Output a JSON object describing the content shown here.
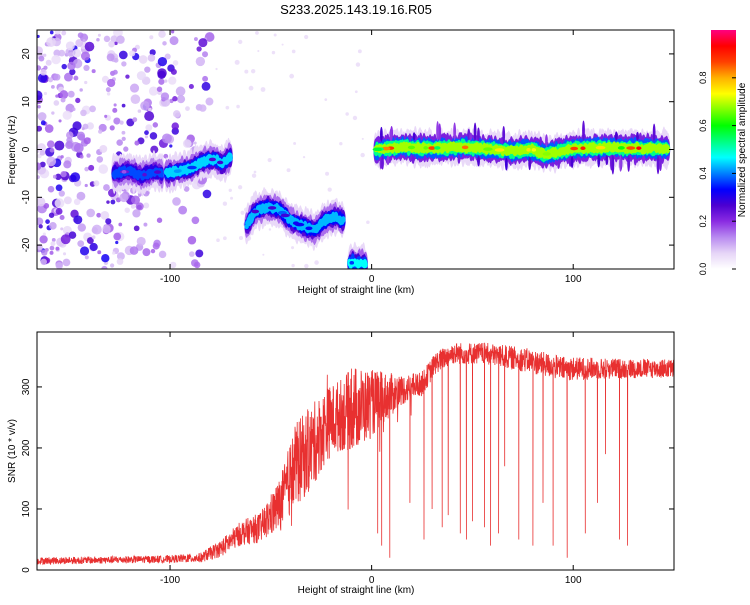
{
  "title": "S233.2025.143.19.16.R05",
  "colors": {
    "snr_line": "#e83030",
    "frame": "#000000",
    "noise_purple": "#8a2be2",
    "colormap": [
      "#ffffff",
      "#e6d5f7",
      "#b889f0",
      "#8a2be2",
      "#4b00d1",
      "#0000ff",
      "#0080ff",
      "#00ffff",
      "#00ff80",
      "#00ff00",
      "#80ff00",
      "#ffff00",
      "#ffb000",
      "#ff4000",
      "#ff0000",
      "#ff0080"
    ]
  },
  "chart_data": [
    {
      "type": "heatmap",
      "xlabel": "Height of straight line (km)",
      "ylabel": "Frequency (Hz)",
      "xlim": [
        -166,
        150
      ],
      "ylim": [
        -25,
        25
      ],
      "x_ticks": [
        {
          "value": -100,
          "label": "-100"
        },
        {
          "value": 0,
          "label": "0"
        },
        {
          "value": 100,
          "label": "100"
        }
      ],
      "y_ticks": [
        {
          "value": -20,
          "label": "-20"
        },
        {
          "value": -10,
          "label": "-10"
        },
        {
          "value": 0,
          "label": "0"
        },
        {
          "value": 10,
          "label": "10"
        },
        {
          "value": 20,
          "label": "20"
        }
      ],
      "colorbar": {
        "label": "Normalized spectral amplitude",
        "range": [
          0,
          1
        ],
        "ticks": [
          {
            "value": 0.0,
            "label": "0.0"
          },
          {
            "value": 0.2,
            "label": "0.2"
          },
          {
            "value": 0.4,
            "label": "0.4"
          },
          {
            "value": 0.6,
            "label": "0.6"
          },
          {
            "value": 0.8,
            "label": "0.8"
          }
        ]
      },
      "ridges": [
        {
          "x": [
            -128,
            -120,
            -114,
            -108,
            -104
          ],
          "y": [
            -5,
            -4.5,
            -5.5,
            -4.5,
            -5
          ],
          "amplitude": 0.3
        },
        {
          "x": [
            -102,
            -96,
            -90,
            -84,
            -78,
            -74,
            -70
          ],
          "y": [
            -5,
            -4.5,
            -4,
            -2.5,
            -2,
            -3,
            -1.5
          ],
          "amplitude": 0.45
        },
        {
          "x": [
            -62,
            -58,
            -52,
            -46,
            -40,
            -34,
            -28,
            -24,
            -18,
            -14
          ],
          "y": [
            -16,
            -13,
            -12,
            -12.5,
            -15,
            -16,
            -17,
            -15,
            -14,
            -15
          ],
          "amplitude": 0.42
        },
        {
          "x": [
            -11,
            -9,
            -7,
            -5,
            -3
          ],
          "y": [
            -24,
            -23.5,
            -24,
            -23.5,
            -24
          ],
          "amplitude": 0.5
        },
        {
          "x": [
            2,
            15,
            30,
            45,
            60,
            70,
            80,
            86,
            92,
            100,
            115,
            130,
            147
          ],
          "y": [
            0,
            0.5,
            0.3,
            0.5,
            0,
            -0.3,
            0,
            -1,
            -0.5,
            0.2,
            0.4,
            0.3,
            0.2
          ],
          "amplitude": 0.95
        }
      ],
      "noise_region": {
        "x": [
          -166,
          -80
        ],
        "y": [
          -25,
          25
        ]
      }
    },
    {
      "type": "line",
      "xlabel": "Height of straight line (km)",
      "ylabel": "SNR (10 * v/v)",
      "xlim": [
        -166,
        150
      ],
      "ylim": [
        0,
        390
      ],
      "x_ticks": [
        {
          "value": -100,
          "label": "-100"
        },
        {
          "value": 0,
          "label": "0"
        },
        {
          "value": 100,
          "label": "100"
        }
      ],
      "y_ticks": [
        {
          "value": 0,
          "label": "0"
        },
        {
          "value": 100,
          "label": "100"
        },
        {
          "value": 200,
          "label": "200"
        },
        {
          "value": 300,
          "label": "300"
        }
      ],
      "envelope": {
        "x": [
          -166,
          -140,
          -120,
          -100,
          -85,
          -75,
          -65,
          -55,
          -45,
          -38,
          -30,
          -22,
          -15,
          -8,
          -2,
          5,
          15,
          25,
          32,
          40,
          55,
          75,
          95,
          110,
          130,
          150
        ],
        "y": [
          15,
          16,
          17,
          18,
          20,
          35,
          60,
          70,
          110,
          170,
          200,
          240,
          255,
          265,
          270,
          280,
          295,
          305,
          340,
          355,
          355,
          345,
          330,
          330,
          330,
          330
        ],
        "noise": [
          6,
          6,
          6,
          6,
          8,
          14,
          20,
          25,
          45,
          70,
          70,
          60,
          60,
          70,
          60,
          45,
          25,
          20,
          18,
          18,
          18,
          20,
          20,
          18,
          16,
          16
        ]
      },
      "dropouts": [
        {
          "x": 3,
          "y": 60
        },
        {
          "x": 5,
          "y": 40
        },
        {
          "x": 9,
          "y": 20
        },
        {
          "x": 19,
          "y": 110
        },
        {
          "x": 26,
          "y": 50
        },
        {
          "x": 30,
          "y": 100
        },
        {
          "x": 35,
          "y": 70
        },
        {
          "x": 38,
          "y": 90
        },
        {
          "x": 44,
          "y": 60
        },
        {
          "x": 47,
          "y": 50
        },
        {
          "x": 50,
          "y": 80
        },
        {
          "x": 56,
          "y": 70
        },
        {
          "x": 59,
          "y": 40
        },
        {
          "x": 63,
          "y": 60
        },
        {
          "x": 66,
          "y": 170
        },
        {
          "x": 73,
          "y": 50
        },
        {
          "x": 80,
          "y": 40
        },
        {
          "x": 85,
          "y": 110
        },
        {
          "x": 90,
          "y": 40
        },
        {
          "x": 97,
          "y": 20
        },
        {
          "x": 106,
          "y": 60
        },
        {
          "x": 112,
          "y": 110
        },
        {
          "x": 116,
          "y": 190
        },
        {
          "x": 123,
          "y": 50
        },
        {
          "x": 127,
          "y": 40
        }
      ],
      "spikes": [
        {
          "x": -22,
          "y": 320
        },
        {
          "x": -21,
          "y": 250
        },
        {
          "x": -10,
          "y": 330
        },
        {
          "x": -5,
          "y": 290
        }
      ]
    }
  ]
}
